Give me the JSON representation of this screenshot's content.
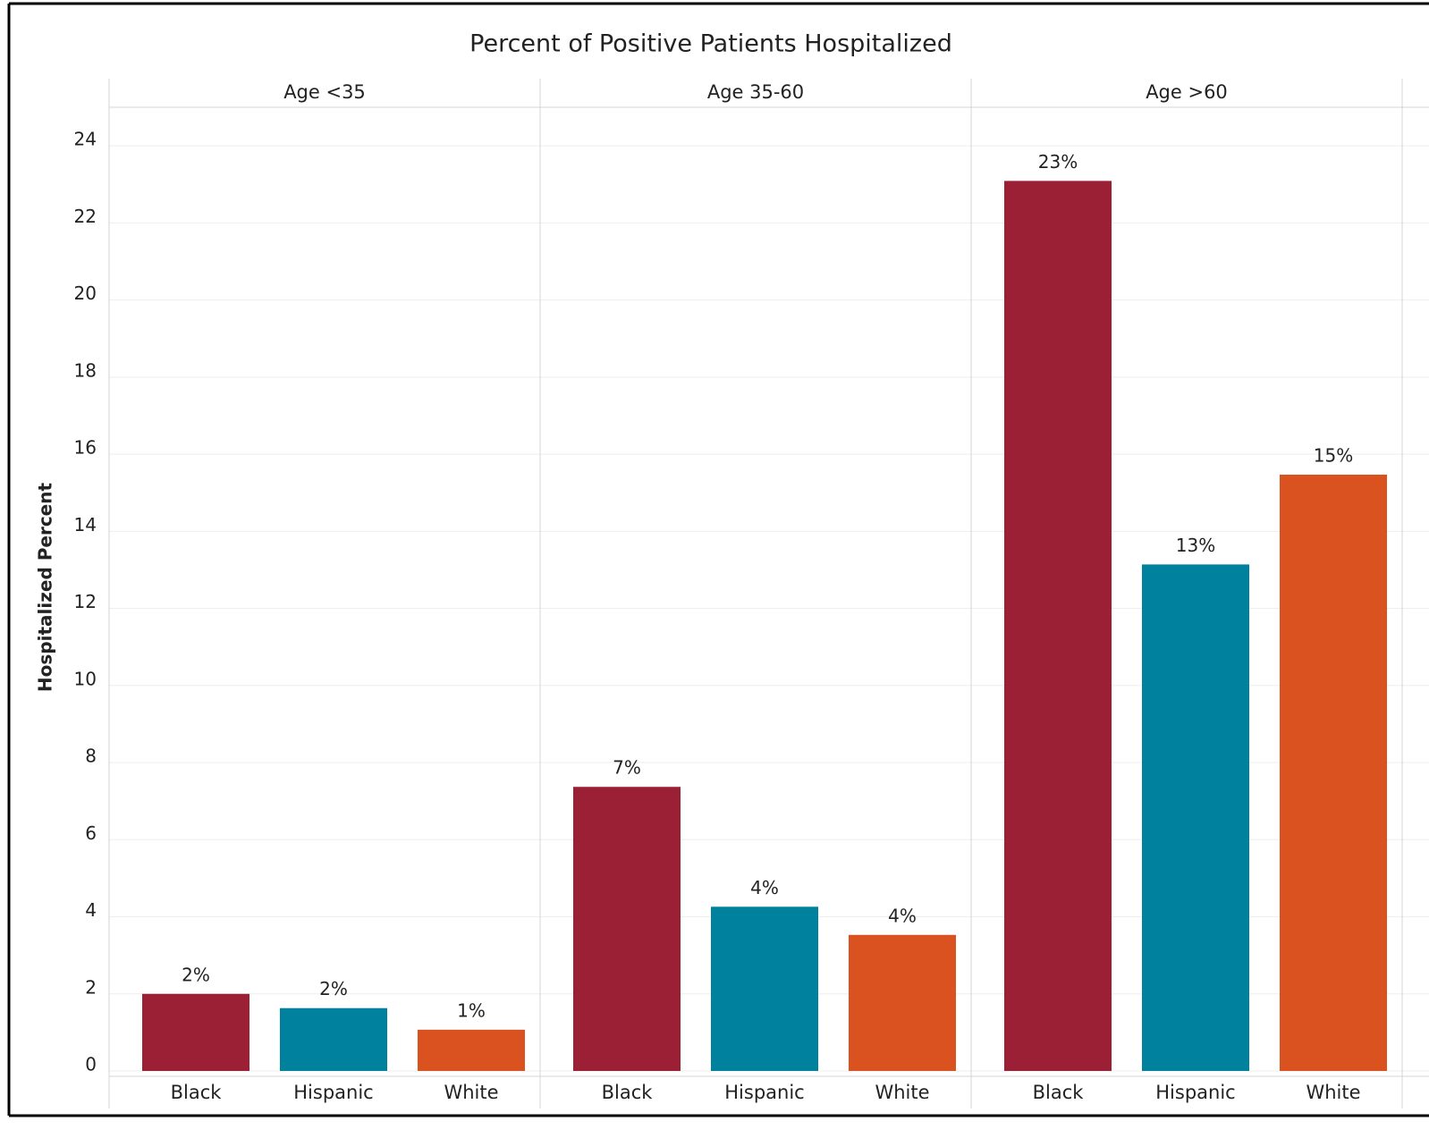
{
  "chart_data": {
    "type": "bar",
    "title": "Percent of Positive Patients Hospitalized",
    "y_label": "Hospitalized Percent",
    "categories": [
      "Age <35",
      "Age 35-60",
      "Age >60"
    ],
    "series": [
      {
        "name": "Black",
        "color": "#9c2035",
        "values": [
          2.0,
          7.37,
          23.09
        ],
        "value_labels": [
          "2%",
          "7%",
          "23%"
        ]
      },
      {
        "name": "Hispanic",
        "color": "#00829e",
        "values": [
          1.63,
          4.26,
          13.14
        ],
        "value_labels": [
          "2%",
          "4%",
          "13%"
        ]
      },
      {
        "name": "White",
        "color": "#d95220",
        "values": [
          1.07,
          3.53,
          15.47
        ],
        "value_labels": [
          "1%",
          "4%",
          "15%"
        ]
      }
    ],
    "ylim": [
      0,
      25
    ],
    "yticks": [
      0,
      2,
      4,
      6,
      8,
      10,
      12,
      14,
      16,
      18,
      20,
      22,
      24
    ],
    "grid": true
  }
}
